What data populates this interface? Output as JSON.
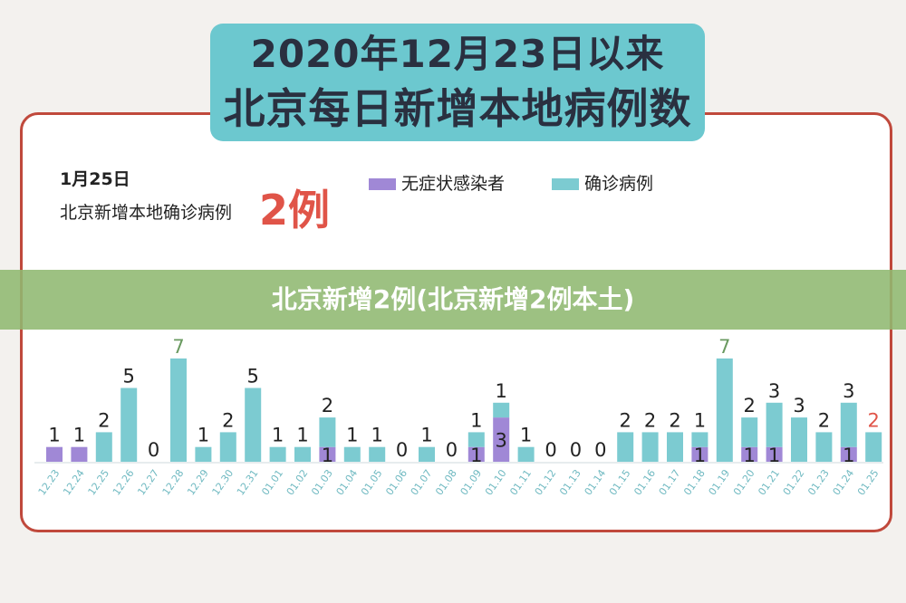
{
  "title": {
    "line1": "2020年12月23日以来",
    "line2": "北京每日新增本地病例数"
  },
  "summary": {
    "date": "1月25日",
    "text": "北京新增本地确诊病例",
    "count": "2例"
  },
  "banner": "北京新增2例(北京新增2例本土)",
  "colors": {
    "confirmed": "#7ccbd1",
    "asymptomatic": "#a088d6",
    "highlight_text": "#e05448",
    "top_value_text": "#6a9a60",
    "background": "#f3f1ee",
    "card_border": "#c0493c"
  },
  "chart_data": {
    "type": "bar",
    "stacked": true,
    "categories": [
      "12.23",
      "12.24",
      "12.25",
      "12.26",
      "12.27",
      "12.28",
      "12.29",
      "12.30",
      "12.31",
      "01.01",
      "01.02",
      "01.03",
      "01.04",
      "01.05",
      "01.06",
      "01.07",
      "01.08",
      "01.09",
      "01.10",
      "01.11",
      "01.12",
      "01.13",
      "01.14",
      "01.15",
      "01.16",
      "01.17",
      "01.18",
      "01.19",
      "01.20",
      "01.21",
      "01.22",
      "01.23",
      "01.24",
      "01.25"
    ],
    "series": [
      {
        "name": "确诊病例",
        "values": [
          0,
          0,
          2,
          5,
          0,
          7,
          1,
          2,
          5,
          1,
          1,
          2,
          1,
          1,
          0,
          1,
          0,
          1,
          1,
          1,
          0,
          0,
          0,
          2,
          2,
          2,
          1,
          7,
          2,
          3,
          3,
          2,
          3,
          2
        ]
      },
      {
        "name": "无症状感染者",
        "values": [
          1,
          1,
          0,
          0,
          0,
          0,
          0,
          0,
          0,
          0,
          0,
          1,
          0,
          0,
          0,
          0,
          0,
          1,
          3,
          0,
          0,
          0,
          0,
          0,
          0,
          0,
          1,
          0,
          1,
          1,
          0,
          0,
          1,
          0
        ]
      }
    ],
    "legend": [
      "无症状感染者",
      "确诊病例"
    ],
    "legend_position": "top",
    "grid": false
  }
}
